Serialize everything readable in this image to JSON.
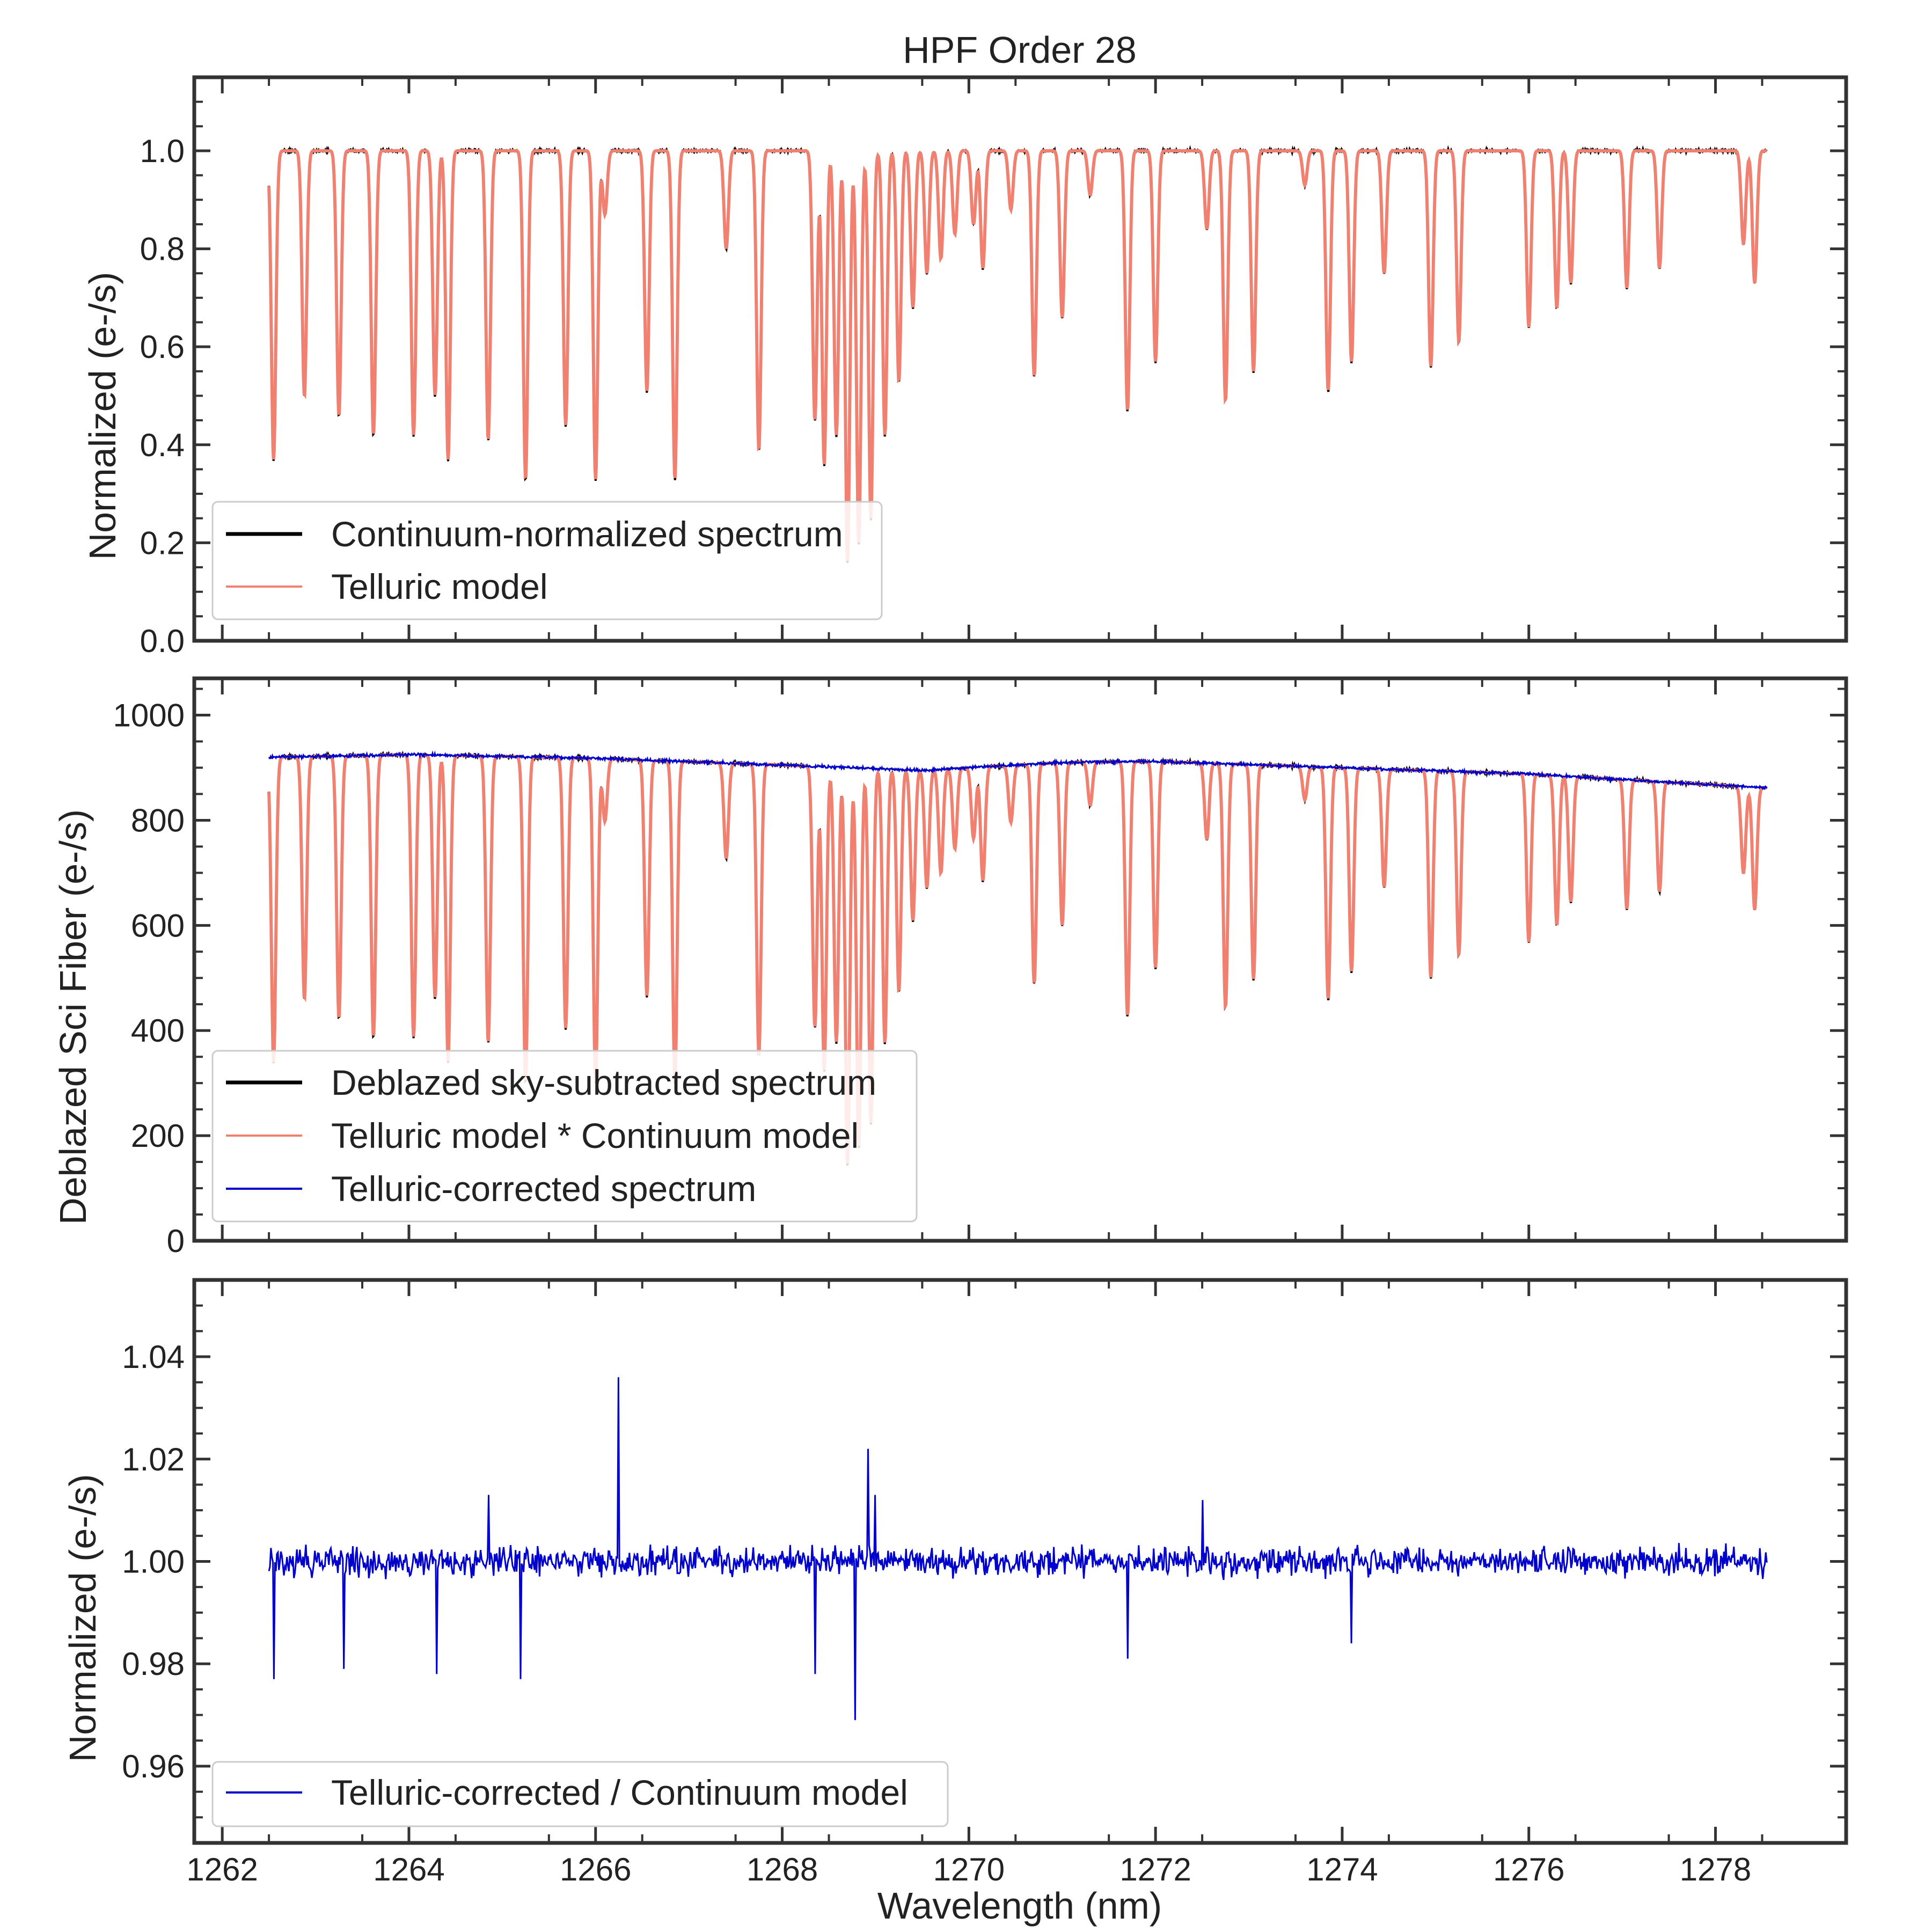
{
  "title": "HPF Order 28",
  "chart_data": [
    {
      "type": "line",
      "name": "normalized-spectrum",
      "xlabel": "",
      "ylabel": "Normalized (e-/s)",
      "xlim": [
        1261.7,
        1279.4
      ],
      "ylim": [
        0.0,
        1.15
      ],
      "yticks": [
        0.0,
        0.2,
        0.4,
        0.6,
        0.8,
        1.0
      ],
      "ytick_labels": [
        "0.0",
        "0.2",
        "0.4",
        "0.6",
        "0.8",
        "1.0"
      ],
      "grid": false,
      "legend_position": "lower-left",
      "continuum": 1.0,
      "series": [
        {
          "name": "Continuum-normalized spectrum",
          "color": "#000000"
        },
        {
          "name": "Telluric model",
          "color": "#f08070"
        }
      ]
    },
    {
      "type": "line",
      "name": "deblazed-spectrum",
      "xlabel": "",
      "ylabel": "Deblazed Sci Fiber (e-/s)",
      "xlim": [
        1261.7,
        1279.4
      ],
      "ylim": [
        0,
        1070
      ],
      "yticks": [
        0,
        200,
        400,
        600,
        800,
        1000
      ],
      "ytick_labels": [
        "0",
        "200",
        "400",
        "600",
        "800",
        "1000"
      ],
      "grid": false,
      "legend_position": "lower-left",
      "continuum": {
        "x": [
          1262.5,
          1264,
          1266,
          1268,
          1269.5,
          1271,
          1272,
          1274,
          1276,
          1278.5
        ],
        "y": [
          920,
          925,
          918,
          905,
          895,
          910,
          912,
          900,
          888,
          862
        ]
      },
      "series": [
        {
          "name": "Deblazed sky-subtracted spectrum",
          "color": "#000000"
        },
        {
          "name": "Telluric model * Continuum model",
          "color": "#f08070"
        },
        {
          "name": "Telluric-corrected spectrum",
          "color": "#0000cc"
        }
      ]
    },
    {
      "type": "line",
      "name": "residual-spectrum",
      "xlabel": "Wavelength (nm)",
      "ylabel": "Normalized (e-/s)",
      "xlim": [
        1261.7,
        1279.4
      ],
      "ylim": [
        0.945,
        1.055
      ],
      "yticks": [
        0.96,
        0.98,
        1.0,
        1.02,
        1.04
      ],
      "ytick_labels": [
        "0.96",
        "0.98",
        "1.00",
        "1.02",
        "1.04"
      ],
      "grid": false,
      "legend_position": "lower-left",
      "noise_amplitude": 0.004,
      "spikes": [
        {
          "x": 1266.25,
          "y": 1.036
        },
        {
          "x": 1268.92,
          "y": 1.022
        },
        {
          "x": 1268.78,
          "y": 0.969
        },
        {
          "x": 1262.55,
          "y": 0.977
        },
        {
          "x": 1265.2,
          "y": 0.977
        },
        {
          "x": 1268.35,
          "y": 0.978
        },
        {
          "x": 1264.3,
          "y": 0.978
        },
        {
          "x": 1263.3,
          "y": 0.979
        },
        {
          "x": 1271.7,
          "y": 0.981
        },
        {
          "x": 1274.1,
          "y": 0.984
        },
        {
          "x": 1264.85,
          "y": 1.013
        },
        {
          "x": 1272.5,
          "y": 1.012
        },
        {
          "x": 1269.0,
          "y": 1.013
        }
      ],
      "series": [
        {
          "name": "Telluric-corrected / Continuum model",
          "color": "#0000cc"
        }
      ]
    }
  ],
  "x_axis": {
    "ticks": [
      1262,
      1264,
      1266,
      1268,
      1270,
      1272,
      1274,
      1276,
      1278
    ],
    "tick_labels": [
      "1262",
      "1264",
      "1266",
      "1268",
      "1270",
      "1272",
      "1274",
      "1276",
      "1278"
    ],
    "data_range": [
      1262.5,
      1278.55
    ]
  },
  "telluric_lines": [
    [
      1262.55,
      0.37
    ],
    [
      1262.88,
      0.5
    ],
    [
      1263.25,
      0.46
    ],
    [
      1263.62,
      0.42
    ],
    [
      1264.05,
      0.42
    ],
    [
      1264.28,
      0.5
    ],
    [
      1264.42,
      0.37
    ],
    [
      1264.85,
      0.41
    ],
    [
      1265.25,
      0.33
    ],
    [
      1265.68,
      0.44
    ],
    [
      1266.0,
      0.33
    ],
    [
      1266.1,
      0.87
    ],
    [
      1266.55,
      0.51
    ],
    [
      1266.85,
      0.33
    ],
    [
      1267.4,
      0.8
    ],
    [
      1267.75,
      0.39
    ],
    [
      1268.35,
      0.45
    ],
    [
      1268.45,
      0.36
    ],
    [
      1268.58,
      0.42
    ],
    [
      1268.7,
      0.16
    ],
    [
      1268.82,
      0.2
    ],
    [
      1268.95,
      0.25
    ],
    [
      1269.1,
      0.42
    ],
    [
      1269.25,
      0.53
    ],
    [
      1269.4,
      0.68
    ],
    [
      1269.55,
      0.75
    ],
    [
      1269.7,
      0.78
    ],
    [
      1269.85,
      0.83
    ],
    [
      1270.05,
      0.85
    ],
    [
      1270.15,
      0.76
    ],
    [
      1270.45,
      0.88
    ],
    [
      1270.7,
      0.54
    ],
    [
      1271.0,
      0.66
    ],
    [
      1271.3,
      0.91
    ],
    [
      1271.7,
      0.47
    ],
    [
      1272.0,
      0.57
    ],
    [
      1272.55,
      0.84
    ],
    [
      1272.75,
      0.49
    ],
    [
      1273.05,
      0.55
    ],
    [
      1273.6,
      0.93
    ],
    [
      1273.85,
      0.51
    ],
    [
      1274.1,
      0.57
    ],
    [
      1274.45,
      0.75
    ],
    [
      1274.95,
      0.56
    ],
    [
      1275.25,
      0.61
    ],
    [
      1276.0,
      0.64
    ],
    [
      1276.3,
      0.68
    ],
    [
      1276.45,
      0.73
    ],
    [
      1277.05,
      0.72
    ],
    [
      1277.4,
      0.76
    ],
    [
      1278.3,
      0.81
    ],
    [
      1278.42,
      0.73
    ]
  ]
}
